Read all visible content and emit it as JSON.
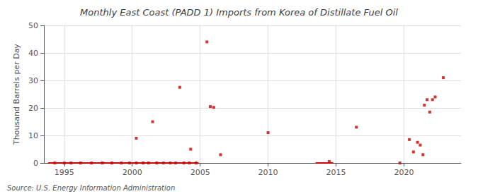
{
  "chart_data": {
    "type": "scatter",
    "title": "Monthly East Coast (PADD 1) Imports from Korea of Distillate Fuel Oil",
    "ylabel": "Thousand Barrels per Day",
    "annotations": [
      "Source: U.S. Energy Information Administration"
    ],
    "xlim": [
      1993.5,
      2024.2
    ],
    "ylim": [
      0,
      50
    ],
    "xticks": [
      1995,
      2000,
      2005,
      2010,
      2015,
      2020
    ],
    "yticks": [
      0,
      10,
      20,
      30,
      40,
      50
    ],
    "grid": true,
    "series": [
      {
        "type": "line",
        "color": "#cc0000",
        "line_style": "solid",
        "x": [
          1993.8,
          2004.9
        ],
        "values": [
          0.0,
          0.0
        ]
      },
      {
        "type": "line",
        "color": "#cc0000",
        "line_style": "solid",
        "x": [
          2013.5,
          2014.8
        ],
        "values": [
          0.0,
          0.0
        ]
      },
      {
        "type": "scatter",
        "color": "#cc0000",
        "marker": "square",
        "x": [
          1994.3,
          1995.0,
          1995.5,
          1996.2,
          1997.0,
          1997.8,
          1998.5,
          1999.2,
          1999.8,
          2000.3,
          2000.8,
          2001.2,
          2001.8,
          2002.3,
          2002.8,
          2003.2,
          2003.8,
          2004.2,
          2004.7,
          2000.3,
          2001.5,
          2003.5,
          2004.3,
          2005.5,
          2005.75,
          2006.0,
          2006.5,
          2010.0,
          2014.5,
          2016.5,
          2019.7,
          2020.4,
          2020.7,
          2021.0,
          2021.2,
          2021.4,
          2021.5,
          2021.7,
          2021.9,
          2022.1,
          2022.3,
          2022.9
        ],
        "values": [
          0.0,
          0.0,
          0.0,
          0.0,
          0.0,
          0.0,
          0.0,
          0.0,
          0.0,
          0.0,
          0.0,
          0.0,
          0.0,
          0.0,
          0.0,
          0.0,
          0.0,
          0.0,
          0.0,
          9.0,
          15.0,
          27.5,
          5.0,
          44.0,
          20.5,
          20.2,
          3.0,
          11.0,
          0.5,
          13.0,
          0.0,
          8.5,
          4.0,
          7.5,
          6.5,
          3.0,
          21.0,
          23.0,
          18.5,
          23.0,
          24.0,
          31.0
        ]
      }
    ]
  }
}
